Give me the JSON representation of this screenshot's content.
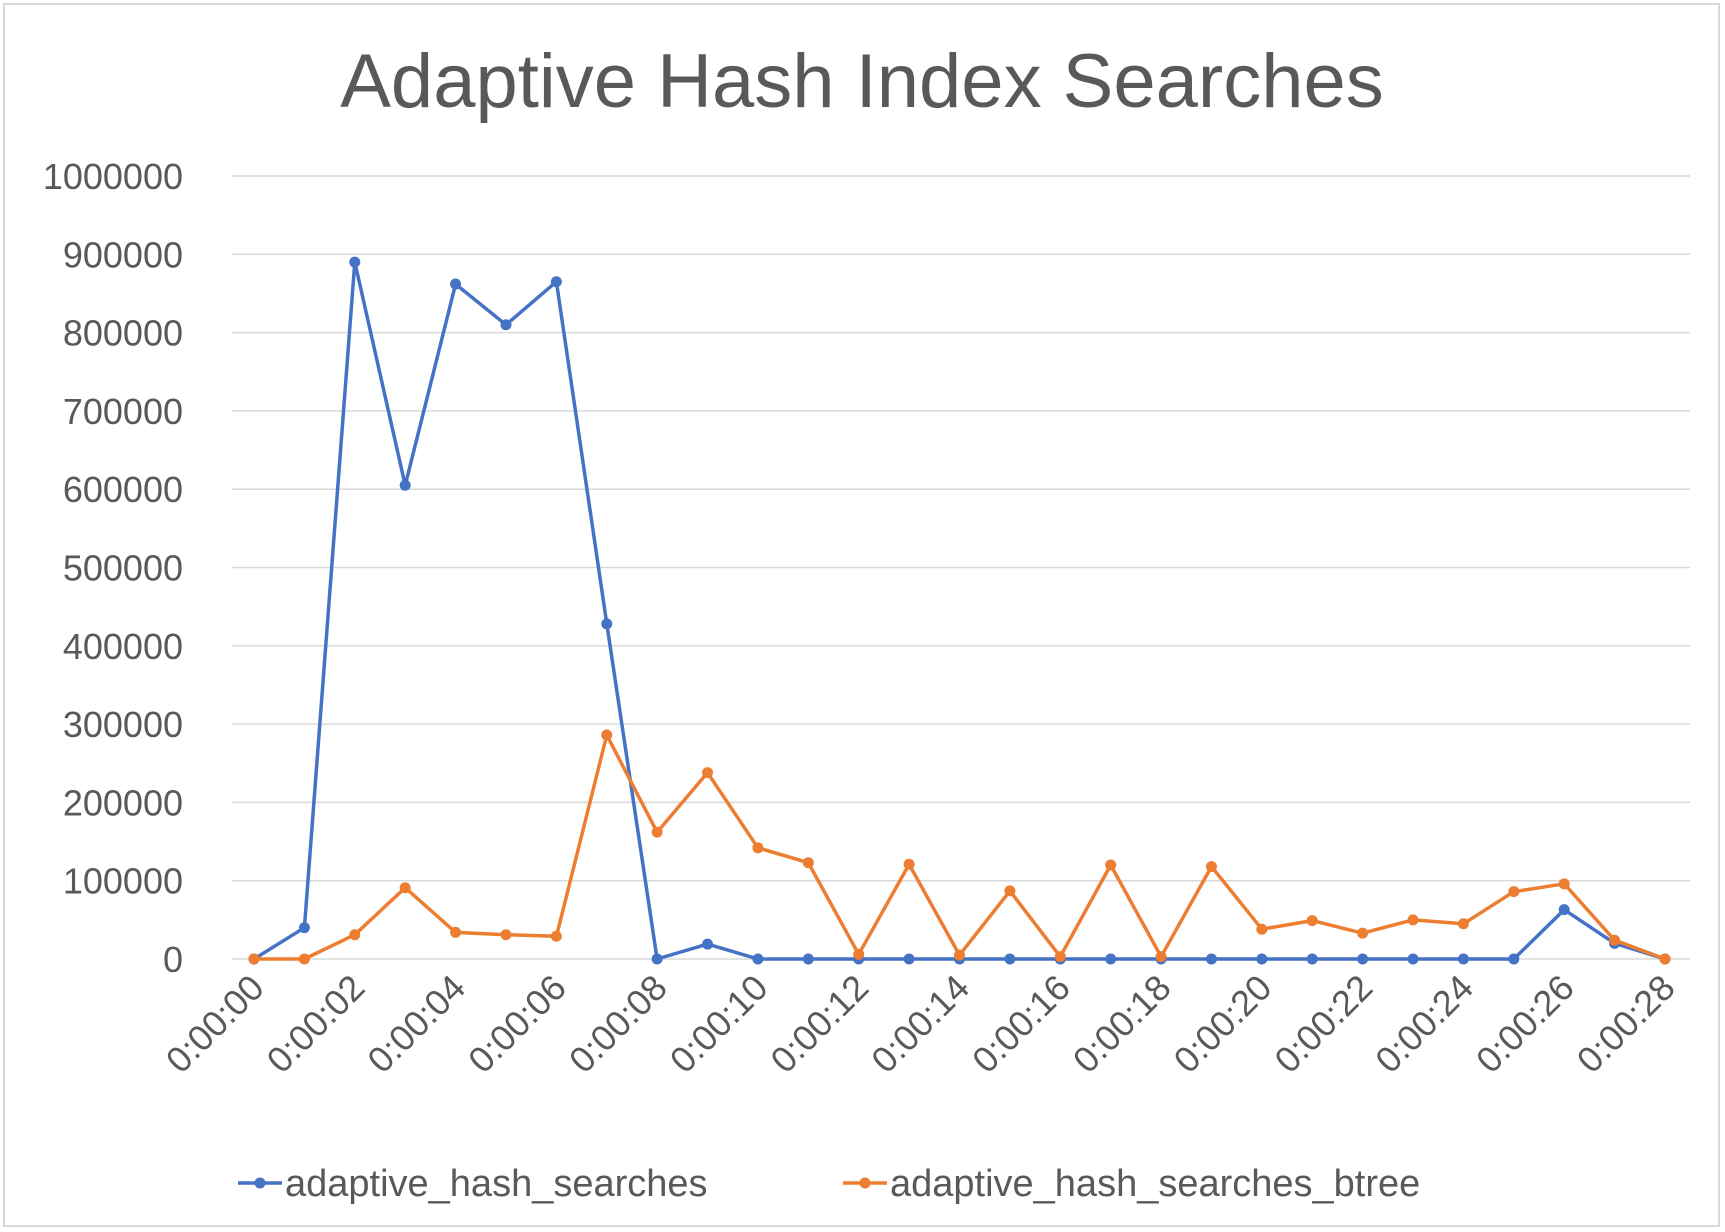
{
  "chart_data": {
    "type": "line",
    "title": "Adaptive Hash Index Searches",
    "xlabel": "",
    "ylabel": "",
    "ylim": [
      0,
      1000000
    ],
    "y_ticks": [
      "0",
      "100000",
      "200000",
      "300000",
      "400000",
      "500000",
      "600000",
      "700000",
      "800000",
      "900000",
      "1000000"
    ],
    "x": [
      "0:00:00",
      "0:00:01",
      "0:00:02",
      "0:00:03",
      "0:00:04",
      "0:00:05",
      "0:00:06",
      "0:00:07",
      "0:00:08",
      "0:00:09",
      "0:00:10",
      "0:00:11",
      "0:00:12",
      "0:00:13",
      "0:00:14",
      "0:00:15",
      "0:00:16",
      "0:00:17",
      "0:00:18",
      "0:00:19",
      "0:00:20",
      "0:00:21",
      "0:00:22",
      "0:00:23",
      "0:00:24",
      "0:00:25",
      "0:00:26",
      "0:00:27",
      "0:00:28"
    ],
    "x_tick_labels": [
      "0:00:00",
      "0:00:02",
      "0:00:04",
      "0:00:06",
      "0:00:08",
      "0:00:10",
      "0:00:12",
      "0:00:14",
      "0:00:16",
      "0:00:18",
      "0:00:20",
      "0:00:22",
      "0:00:24",
      "0:00:26",
      "0:00:28"
    ],
    "grid": true,
    "legend_position": "bottom",
    "series": [
      {
        "name": "adaptive_hash_searches",
        "color": "#4472c4",
        "values": [
          0,
          40000,
          890000,
          605000,
          862000,
          810000,
          865000,
          428000,
          0,
          19000,
          0,
          0,
          0,
          0,
          0,
          0,
          0,
          0,
          0,
          0,
          0,
          0,
          0,
          0,
          0,
          0,
          63000,
          20000,
          0
        ]
      },
      {
        "name": "adaptive_hash_searches_btree",
        "color": "#ed7d31",
        "values": [
          0,
          0,
          31000,
          91000,
          34000,
          31000,
          29000,
          286000,
          162000,
          238000,
          142000,
          123000,
          6000,
          121000,
          5000,
          87000,
          3000,
          120000,
          3000,
          118000,
          38000,
          49000,
          33000,
          50000,
          45000,
          86000,
          96000,
          24000,
          0
        ]
      }
    ]
  }
}
